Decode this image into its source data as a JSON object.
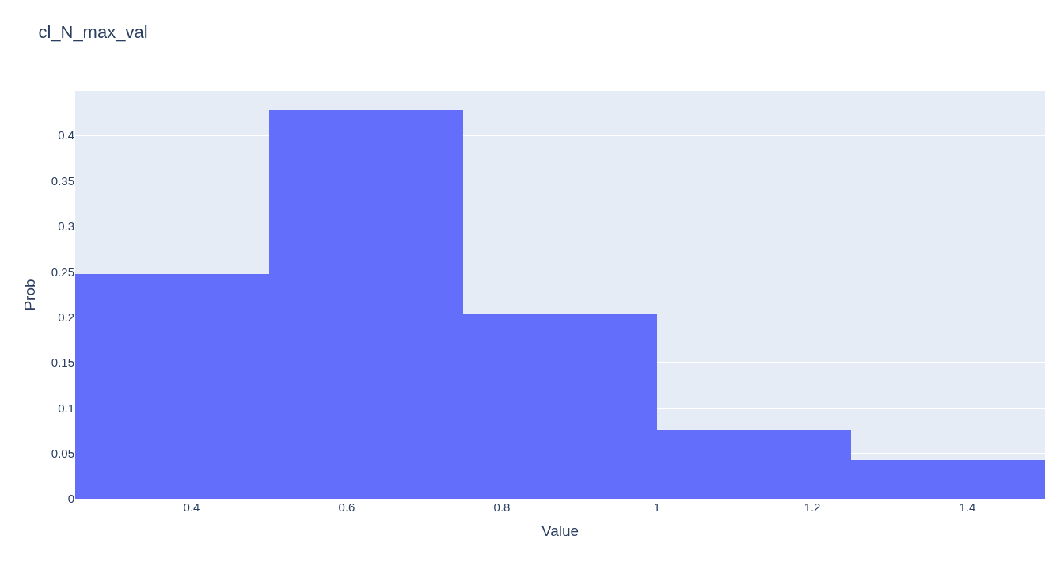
{
  "chart_data": {
    "type": "histogram",
    "title": "cl_N_max_val",
    "xlabel": "Value",
    "ylabel": "Prob",
    "bins": [
      0.25,
      0.5,
      0.75,
      1.0,
      1.25,
      1.5
    ],
    "values": [
      0.248,
      0.428,
      0.204,
      0.076,
      0.043
    ],
    "color": "#636efa",
    "xlim": [
      0.25,
      1.5
    ],
    "xticks": [
      0.4,
      0.6,
      0.8,
      {
        "value": 1.0,
        "label": "1"
      },
      1.2,
      1.4
    ],
    "ylim": [
      0,
      0.449
    ],
    "yticks": [
      0,
      0.05,
      0.1,
      0.15,
      0.2,
      0.25,
      0.3,
      0.35,
      0.4
    ],
    "grid": "y"
  }
}
